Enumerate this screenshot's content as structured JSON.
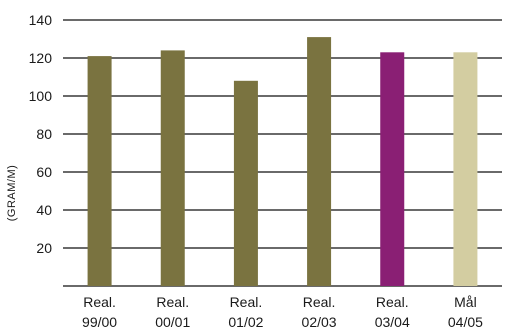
{
  "chart_data": {
    "type": "bar",
    "title": "",
    "xlabel": "",
    "ylabel": "(GRAM/M)",
    "ylim": [
      0,
      140
    ],
    "yticks": [
      20,
      40,
      60,
      80,
      100,
      120,
      140
    ],
    "grid": true,
    "categories": [
      [
        "Real.",
        "99/00"
      ],
      [
        "Real.",
        "00/01"
      ],
      [
        "Real.",
        "01/02"
      ],
      [
        "Real.",
        "02/03"
      ],
      [
        "Real.",
        "03/04"
      ],
      [
        "Mål",
        "04/05"
      ]
    ],
    "values": [
      121,
      124,
      108,
      131,
      123,
      123
    ],
    "colors": [
      "#7a7340",
      "#7a7340",
      "#7a7340",
      "#7a7340",
      "#8a1f74",
      "#d3cda1"
    ]
  }
}
